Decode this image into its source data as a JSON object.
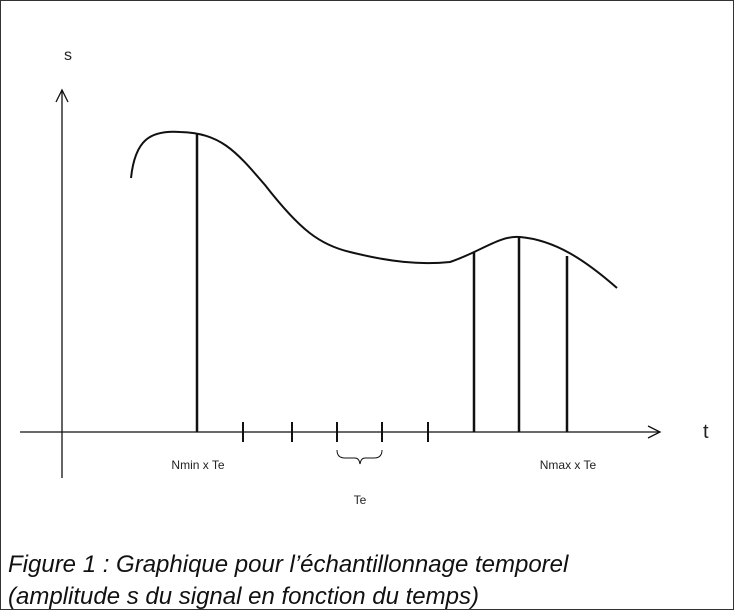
{
  "axes": {
    "y_label": "s",
    "x_label": "t"
  },
  "labels": {
    "nmin": "Nmin x Te",
    "te": "Te",
    "nmax": "Nmax x Te"
  },
  "caption": {
    "lines": [
      "Figure 1 : Graphique pour l’échantillonnage temporel",
      "(amplitude s du signal en fonction du temps)"
    ]
  }
}
